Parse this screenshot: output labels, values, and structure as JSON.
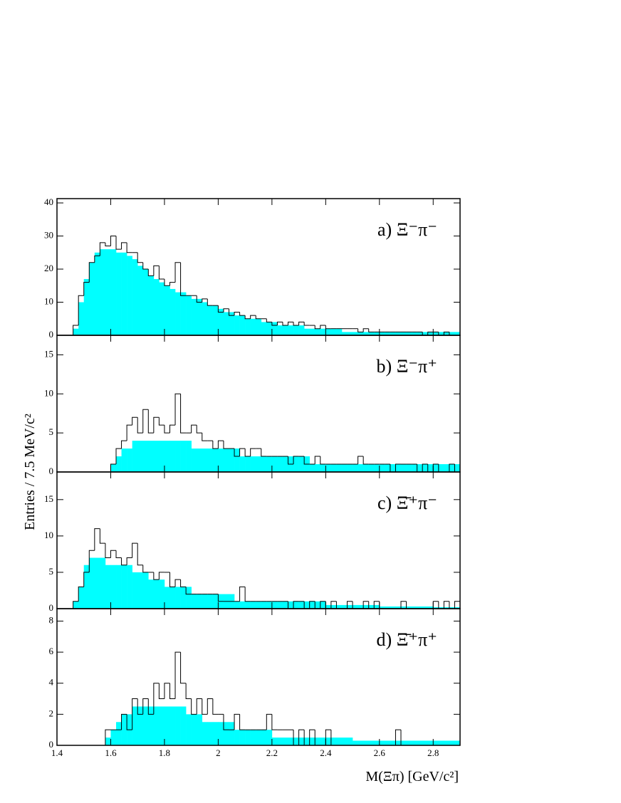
{
  "ylabel": "Entries / 7.5 MeV/c²",
  "xlabel": "M(Ξπ) [GeV/c²]",
  "chart_data": [
    {
      "type": "histogram",
      "label": "a) Ξ⁻π⁻",
      "xlim": [
        1.4,
        2.9
      ],
      "ylim": [
        0,
        41.3
      ],
      "yticks": [
        0,
        10,
        20,
        30,
        40
      ],
      "bins": [
        1.4,
        1.42,
        1.44,
        1.46,
        1.48,
        1.5,
        1.52,
        1.54,
        1.56,
        1.58,
        1.6,
        1.62,
        1.64,
        1.66,
        1.68,
        1.7,
        1.72,
        1.74,
        1.76,
        1.78,
        1.8,
        1.82,
        1.84,
        1.86,
        1.88,
        1.9,
        1.92,
        1.94,
        1.96,
        1.98,
        2,
        2.02,
        2.04,
        2.06,
        2.08,
        2.1,
        2.12,
        2.14,
        2.16,
        2.18,
        2.2,
        2.22,
        2.24,
        2.26,
        2.28,
        2.3,
        2.32,
        2.34,
        2.36,
        2.38,
        2.4,
        2.42,
        2.44,
        2.46,
        2.48,
        2.5,
        2.52,
        2.54,
        2.56,
        2.58,
        2.6,
        2.62,
        2.64,
        2.66,
        2.68,
        2.7,
        2.72,
        2.74,
        2.76,
        2.78,
        2.8,
        2.82,
        2.84,
        2.86,
        2.88,
        2.9
      ],
      "series": [
        {
          "color": "#00ffff",
          "fill": true,
          "values": [
            0,
            0,
            0,
            2,
            10,
            17,
            22,
            25,
            26,
            26,
            26,
            25,
            25,
            24,
            23,
            21,
            20,
            18,
            17,
            16,
            15,
            14,
            13,
            13,
            12,
            11,
            11,
            10,
            9,
            9,
            8,
            7,
            7,
            6,
            6,
            5,
            5,
            5,
            4,
            4,
            4,
            3,
            3,
            3,
            3,
            3,
            2,
            2,
            2,
            2,
            2,
            2,
            2,
            1,
            1,
            1,
            1,
            1,
            1,
            1,
            1,
            1,
            1,
            1,
            1,
            1,
            1,
            1,
            1,
            1,
            1,
            1,
            1,
            1,
            1
          ]
        },
        {
          "color": "#000000",
          "fill": false,
          "values": [
            0,
            0,
            0,
            3,
            12,
            16,
            22,
            24,
            28,
            27,
            30,
            26,
            28,
            25,
            25,
            22,
            20,
            18,
            21,
            17,
            15,
            16,
            22,
            12,
            12,
            12,
            10,
            11,
            9,
            9,
            7,
            8,
            6,
            7,
            6,
            5,
            6,
            5,
            5,
            4,
            3,
            4,
            3,
            4,
            3,
            4,
            3,
            3,
            2,
            3,
            2,
            2,
            2,
            2,
            2,
            2,
            1,
            2,
            1,
            1,
            1,
            1,
            1,
            1,
            1,
            1,
            1,
            1,
            0,
            1,
            1,
            0,
            1,
            0,
            0
          ]
        }
      ]
    },
    {
      "type": "histogram",
      "label": "b) Ξ⁻π⁺",
      "xlim": [
        1.4,
        2.9
      ],
      "ylim": [
        0,
        17.5
      ],
      "yticks": [
        0,
        5,
        10,
        15
      ],
      "bins": [
        1.4,
        1.42,
        1.44,
        1.46,
        1.48,
        1.5,
        1.52,
        1.54,
        1.56,
        1.58,
        1.6,
        1.62,
        1.64,
        1.66,
        1.68,
        1.7,
        1.72,
        1.74,
        1.76,
        1.78,
        1.8,
        1.82,
        1.84,
        1.86,
        1.88,
        1.9,
        1.92,
        1.94,
        1.96,
        1.98,
        2,
        2.02,
        2.04,
        2.06,
        2.08,
        2.1,
        2.12,
        2.14,
        2.16,
        2.18,
        2.2,
        2.22,
        2.24,
        2.26,
        2.28,
        2.3,
        2.32,
        2.34,
        2.36,
        2.38,
        2.4,
        2.42,
        2.44,
        2.46,
        2.48,
        2.5,
        2.52,
        2.54,
        2.56,
        2.58,
        2.6,
        2.62,
        2.64,
        2.66,
        2.68,
        2.7,
        2.72,
        2.74,
        2.76,
        2.78,
        2.8,
        2.82,
        2.84,
        2.86,
        2.88,
        2.9
      ],
      "series": [
        {
          "color": "#00ffff",
          "fill": true,
          "values": [
            0,
            0,
            0,
            0,
            0,
            0,
            0,
            0,
            0,
            0,
            1,
            2,
            3,
            3,
            4,
            4,
            4,
            4,
            4,
            4,
            4,
            4,
            4,
            4,
            4,
            3,
            3,
            3,
            3,
            3,
            3,
            3,
            3,
            3,
            2,
            2,
            2,
            2,
            2,
            2,
            2,
            2,
            2,
            2,
            2,
            2,
            2,
            1,
            1,
            1,
            1,
            1,
            1,
            1,
            1,
            1,
            1,
            1,
            1,
            1,
            1,
            1,
            1,
            1,
            1,
            1,
            1,
            1,
            1,
            1,
            1,
            1,
            1,
            1,
            1
          ]
        },
        {
          "color": "#000000",
          "fill": false,
          "values": [
            0,
            0,
            0,
            0,
            0,
            0,
            0,
            0,
            0,
            0,
            1,
            3,
            4,
            6,
            7,
            5,
            8,
            5,
            7,
            6,
            5,
            6,
            10,
            5,
            5,
            6,
            5,
            4,
            4,
            3,
            4,
            3,
            3,
            2,
            3,
            2,
            3,
            3,
            2,
            2,
            2,
            2,
            2,
            1,
            2,
            2,
            1,
            1,
            2,
            1,
            1,
            1,
            1,
            1,
            1,
            1,
            2,
            1,
            1,
            1,
            1,
            1,
            0,
            1,
            1,
            1,
            1,
            0,
            1,
            0,
            1,
            0,
            0,
            1,
            0
          ]
        }
      ]
    },
    {
      "type": "histogram",
      "label": "c) Ξ̄⁺π⁻",
      "xlim": [
        1.4,
        2.9
      ],
      "ylim": [
        0,
        18.8
      ],
      "yticks": [
        0,
        5,
        10,
        15
      ],
      "bins": [
        1.4,
        1.42,
        1.44,
        1.46,
        1.48,
        1.5,
        1.52,
        1.54,
        1.56,
        1.58,
        1.6,
        1.62,
        1.64,
        1.66,
        1.68,
        1.7,
        1.72,
        1.74,
        1.76,
        1.78,
        1.8,
        1.82,
        1.84,
        1.86,
        1.88,
        1.9,
        1.92,
        1.94,
        1.96,
        1.98,
        2,
        2.02,
        2.04,
        2.06,
        2.08,
        2.1,
        2.12,
        2.14,
        2.16,
        2.18,
        2.2,
        2.22,
        2.24,
        2.26,
        2.28,
        2.3,
        2.32,
        2.34,
        2.36,
        2.38,
        2.4,
        2.42,
        2.44,
        2.46,
        2.48,
        2.5,
        2.52,
        2.54,
        2.56,
        2.58,
        2.6,
        2.62,
        2.64,
        2.66,
        2.68,
        2.7,
        2.72,
        2.74,
        2.76,
        2.78,
        2.8,
        2.82,
        2.84,
        2.86,
        2.88,
        2.9
      ],
      "series": [
        {
          "color": "#00ffff",
          "fill": true,
          "values": [
            0,
            0,
            0,
            1,
            3,
            6,
            7,
            7,
            7,
            6,
            6,
            6,
            6,
            6,
            5,
            5,
            5,
            4,
            4,
            4,
            3,
            3,
            3,
            3,
            3,
            2,
            2,
            2,
            2,
            2,
            2,
            2,
            2,
            1,
            1,
            1,
            1,
            1,
            1,
            1,
            1,
            1,
            1,
            1,
            1,
            1,
            1,
            1,
            1,
            1,
            0.5,
            0.5,
            0.5,
            0.5,
            0.5,
            0.5,
            0.5,
            0.5,
            0.5,
            0.5,
            0.3,
            0.3,
            0.3,
            0.3,
            0.3,
            0.3,
            0.3,
            0.3,
            0.3,
            0.3,
            0.2,
            0.2,
            0.2,
            0.2,
            0.2
          ]
        },
        {
          "color": "#000000",
          "fill": false,
          "values": [
            0,
            0,
            0,
            1,
            3,
            5,
            8,
            11,
            9,
            7,
            8,
            7,
            6,
            7,
            9,
            6,
            5,
            5,
            4,
            5,
            5,
            3,
            4,
            3,
            2,
            2,
            2,
            2,
            2,
            2,
            1,
            1,
            1,
            1,
            3,
            1,
            1,
            1,
            1,
            1,
            1,
            1,
            1,
            0,
            1,
            1,
            0,
            1,
            0,
            1,
            0,
            1,
            0,
            0,
            1,
            0,
            0,
            1,
            0,
            1,
            0,
            0,
            0,
            0,
            1,
            0,
            0,
            0,
            0,
            0,
            1,
            0,
            1,
            0,
            1
          ]
        }
      ]
    },
    {
      "type": "histogram",
      "label": "d) Ξ̄⁺π⁺",
      "xlim": [
        1.4,
        2.9
      ],
      "ylim": [
        0,
        8.8
      ],
      "yticks": [
        0,
        2,
        4,
        6,
        8
      ],
      "xticks": [
        1.4,
        1.6,
        1.8,
        2,
        2.2,
        2.4,
        2.6,
        2.8
      ],
      "bins": [
        1.4,
        1.42,
        1.44,
        1.46,
        1.48,
        1.5,
        1.52,
        1.54,
        1.56,
        1.58,
        1.6,
        1.62,
        1.64,
        1.66,
        1.68,
        1.7,
        1.72,
        1.74,
        1.76,
        1.78,
        1.8,
        1.82,
        1.84,
        1.86,
        1.88,
        1.9,
        1.92,
        1.94,
        1.96,
        1.98,
        2,
        2.02,
        2.04,
        2.06,
        2.08,
        2.1,
        2.12,
        2.14,
        2.16,
        2.18,
        2.2,
        2.22,
        2.24,
        2.26,
        2.28,
        2.3,
        2.32,
        2.34,
        2.36,
        2.38,
        2.4,
        2.42,
        2.44,
        2.46,
        2.48,
        2.5,
        2.52,
        2.54,
        2.56,
        2.58,
        2.6,
        2.62,
        2.64,
        2.66,
        2.68,
        2.7,
        2.72,
        2.74,
        2.76,
        2.78,
        2.8,
        2.82,
        2.84,
        2.86,
        2.88,
        2.9
      ],
      "series": [
        {
          "color": "#00ffff",
          "fill": true,
          "values": [
            0,
            0,
            0,
            0,
            0,
            0,
            0,
            0,
            0,
            0.5,
            1,
            1.5,
            2,
            2,
            2.5,
            2.5,
            2.5,
            2.5,
            2.5,
            2.5,
            2.5,
            2.5,
            2.5,
            2.5,
            2,
            2,
            2,
            1.5,
            1.5,
            1.5,
            1.5,
            1.5,
            1.5,
            1,
            1,
            1,
            1,
            1,
            1,
            1,
            0.5,
            0.5,
            0.5,
            0.5,
            0.5,
            0.5,
            0.5,
            0.5,
            0.5,
            0.5,
            0.5,
            0.5,
            0.5,
            0.5,
            0.5,
            0.3,
            0.3,
            0.3,
            0.3,
            0.3,
            0.3,
            0.3,
            0.3,
            0.3,
            0.3,
            0.3,
            0.3,
            0.3,
            0.3,
            0.3,
            0.3,
            0.3,
            0.3,
            0.3,
            0.3
          ]
        },
        {
          "color": "#000000",
          "fill": false,
          "values": [
            0,
            0,
            0,
            0,
            0,
            0,
            0,
            0,
            0,
            1,
            1,
            1,
            2,
            1,
            3,
            2,
            3,
            2,
            4,
            3,
            4,
            3,
            6,
            4,
            3,
            2,
            3,
            2,
            3,
            2,
            2,
            1,
            1,
            2,
            1,
            1,
            1,
            1,
            1,
            2,
            1,
            1,
            1,
            1,
            0,
            1,
            0,
            1,
            0,
            0,
            1,
            0,
            0,
            0,
            0,
            0,
            0,
            0,
            0,
            0,
            0,
            0,
            0,
            1,
            0,
            0,
            0,
            0,
            0,
            0,
            0,
            0,
            0,
            0,
            0
          ]
        }
      ]
    }
  ]
}
